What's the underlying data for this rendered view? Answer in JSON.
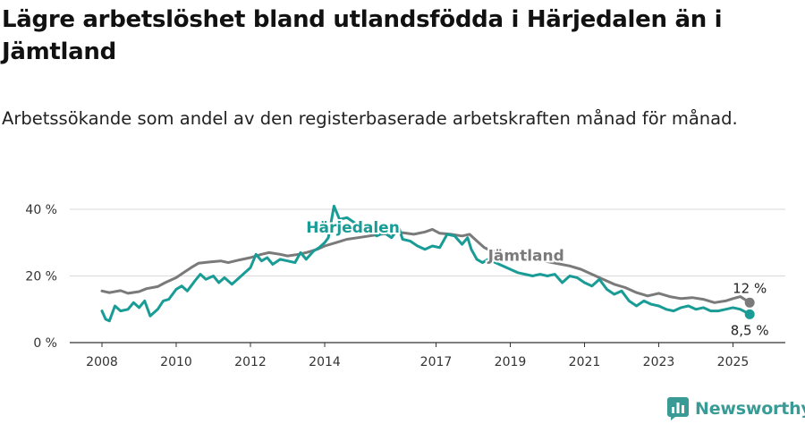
{
  "title": "Lägre arbetslöshet bland utlandsfödda i Härjedalen än i Jämtland",
  "subtitle": "Arbetssökande som andel av den registerbaserade arbetskraften månad för månad.",
  "logo": {
    "text": "Newsworthy",
    "icon": "newsworthy-logo-icon",
    "color": "#3a9b96"
  },
  "chart_data": {
    "type": "line",
    "ylim": [
      0,
      40
    ],
    "xlim": [
      2007.2,
      2026.0
    ],
    "grid": true,
    "y_ticks": [
      {
        "value": 0,
        "label": "0 %"
      },
      {
        "value": 20,
        "label": "20 %"
      },
      {
        "value": 40,
        "label": "40 %"
      }
    ],
    "x_ticks": [
      {
        "value": 2008,
        "label": "2008"
      },
      {
        "value": 2010,
        "label": "2010"
      },
      {
        "value": 2012,
        "label": "2012"
      },
      {
        "value": 2014,
        "label": "2014"
      },
      {
        "value": 2017,
        "label": "2017"
      },
      {
        "value": 2019,
        "label": "2019"
      },
      {
        "value": 2021,
        "label": "2021"
      },
      {
        "value": 2023,
        "label": "2023"
      },
      {
        "value": 2025,
        "label": "2025"
      }
    ],
    "series": [
      {
        "name": "Jämtland",
        "color": "#7a7a7a",
        "end_label": "12 %",
        "points": [
          [
            2008.0,
            15.5
          ],
          [
            2008.2,
            15.0
          ],
          [
            2008.5,
            15.6
          ],
          [
            2008.7,
            14.8
          ],
          [
            2009.0,
            15.3
          ],
          [
            2009.2,
            16.2
          ],
          [
            2009.5,
            16.8
          ],
          [
            2009.7,
            18.0
          ],
          [
            2010.0,
            19.5
          ],
          [
            2010.2,
            21.0
          ],
          [
            2010.4,
            22.5
          ],
          [
            2010.6,
            23.8
          ],
          [
            2010.9,
            24.2
          ],
          [
            2011.2,
            24.5
          ],
          [
            2011.4,
            24.0
          ],
          [
            2011.7,
            24.8
          ],
          [
            2012.0,
            25.5
          ],
          [
            2012.3,
            26.5
          ],
          [
            2012.5,
            27.0
          ],
          [
            2012.8,
            26.5
          ],
          [
            2013.0,
            26.0
          ],
          [
            2013.3,
            26.5
          ],
          [
            2013.5,
            27.0
          ],
          [
            2013.8,
            28.0
          ],
          [
            2014.0,
            29.0
          ],
          [
            2014.3,
            30.0
          ],
          [
            2014.6,
            31.0
          ],
          [
            2014.9,
            31.5
          ],
          [
            2015.2,
            32.0
          ],
          [
            2015.5,
            32.5
          ],
          [
            2015.8,
            32.8
          ],
          [
            2016.1,
            33.0
          ],
          [
            2016.4,
            32.5
          ],
          [
            2016.7,
            33.2
          ],
          [
            2016.9,
            34.0
          ],
          [
            2017.1,
            32.8
          ],
          [
            2017.4,
            32.5
          ],
          [
            2017.7,
            32.0
          ],
          [
            2017.9,
            32.5
          ],
          [
            2018.1,
            30.5
          ],
          [
            2018.3,
            28.5
          ],
          [
            2018.5,
            27.5
          ],
          [
            2020.6,
            23.0
          ],
          [
            2020.9,
            22.0
          ],
          [
            2021.2,
            20.5
          ],
          [
            2021.5,
            19.0
          ],
          [
            2021.8,
            17.5
          ],
          [
            2022.1,
            16.5
          ],
          [
            2022.4,
            15.0
          ],
          [
            2022.7,
            14.0
          ],
          [
            2023.0,
            14.8
          ],
          [
            2023.3,
            13.8
          ],
          [
            2023.6,
            13.2
          ],
          [
            2023.9,
            13.5
          ],
          [
            2024.2,
            13.0
          ],
          [
            2024.5,
            12.0
          ],
          [
            2024.8,
            12.5
          ],
          [
            2025.0,
            13.2
          ],
          [
            2025.2,
            13.8
          ],
          [
            2025.45,
            12.0
          ]
        ]
      },
      {
        "name": "Härjedalen",
        "color": "#199c95",
        "end_label": "8,5 %",
        "points": [
          [
            2008.0,
            9.5
          ],
          [
            2008.1,
            7.0
          ],
          [
            2008.2,
            6.5
          ],
          [
            2008.35,
            11.0
          ],
          [
            2008.5,
            9.5
          ],
          [
            2008.7,
            10.0
          ],
          [
            2008.85,
            12.0
          ],
          [
            2009.0,
            10.5
          ],
          [
            2009.15,
            12.5
          ],
          [
            2009.3,
            8.0
          ],
          [
            2009.5,
            10.0
          ],
          [
            2009.65,
            12.5
          ],
          [
            2009.8,
            13.0
          ],
          [
            2010.0,
            16.0
          ],
          [
            2010.15,
            17.0
          ],
          [
            2010.3,
            15.5
          ],
          [
            2010.5,
            18.5
          ],
          [
            2010.65,
            20.5
          ],
          [
            2010.8,
            19.0
          ],
          [
            2011.0,
            20.0
          ],
          [
            2011.15,
            18.0
          ],
          [
            2011.3,
            19.5
          ],
          [
            2011.5,
            17.5
          ],
          [
            2011.7,
            19.5
          ],
          [
            2011.85,
            21.0
          ],
          [
            2012.0,
            22.5
          ],
          [
            2012.15,
            26.5
          ],
          [
            2012.3,
            24.5
          ],
          [
            2012.45,
            25.5
          ],
          [
            2012.6,
            23.5
          ],
          [
            2012.8,
            25.0
          ],
          [
            2013.0,
            24.5
          ],
          [
            2013.2,
            24.0
          ],
          [
            2013.35,
            27.0
          ],
          [
            2013.5,
            25.0
          ],
          [
            2013.7,
            27.5
          ],
          [
            2013.85,
            28.5
          ],
          [
            2014.0,
            30.0
          ],
          [
            2014.1,
            31.5
          ],
          [
            2014.25,
            41.0
          ],
          [
            2014.4,
            37.0
          ],
          [
            2014.6,
            37.5
          ],
          [
            2014.8,
            36.0
          ],
          [
            2015.0,
            33.5
          ],
          [
            2015.2,
            34.5
          ],
          [
            2015.4,
            32.0
          ],
          [
            2015.6,
            33.0
          ],
          [
            2015.8,
            31.5
          ],
          [
            2016.0,
            34.5
          ],
          [
            2016.1,
            31.0
          ],
          [
            2016.3,
            30.5
          ],
          [
            2016.5,
            29.0
          ],
          [
            2016.7,
            28.0
          ],
          [
            2016.9,
            29.0
          ],
          [
            2017.1,
            28.5
          ],
          [
            2017.3,
            32.5
          ],
          [
            2017.5,
            32.0
          ],
          [
            2017.7,
            29.5
          ],
          [
            2017.85,
            31.5
          ],
          [
            2017.95,
            28.0
          ],
          [
            2018.1,
            25.0
          ],
          [
            2018.25,
            24.0
          ],
          [
            2018.4,
            25.0
          ],
          [
            2019.2,
            21.0
          ],
          [
            2019.4,
            20.5
          ],
          [
            2019.6,
            20.0
          ],
          [
            2019.8,
            20.5
          ],
          [
            2020.0,
            20.0
          ],
          [
            2020.2,
            20.5
          ],
          [
            2020.4,
            18.0
          ],
          [
            2020.6,
            20.0
          ],
          [
            2020.8,
            19.5
          ],
          [
            2021.0,
            18.0
          ],
          [
            2021.2,
            17.0
          ],
          [
            2021.4,
            19.0
          ],
          [
            2021.6,
            16.0
          ],
          [
            2021.8,
            14.5
          ],
          [
            2022.0,
            15.5
          ],
          [
            2022.2,
            12.5
          ],
          [
            2022.4,
            11.0
          ],
          [
            2022.6,
            12.5
          ],
          [
            2022.8,
            11.5
          ],
          [
            2023.0,
            11.0
          ],
          [
            2023.2,
            10.0
          ],
          [
            2023.4,
            9.5
          ],
          [
            2023.6,
            10.5
          ],
          [
            2023.8,
            11.0
          ],
          [
            2024.0,
            10.0
          ],
          [
            2024.2,
            10.5
          ],
          [
            2024.4,
            9.5
          ],
          [
            2024.6,
            9.5
          ],
          [
            2024.8,
            10.0
          ],
          [
            2025.0,
            10.5
          ],
          [
            2025.2,
            10.0
          ],
          [
            2025.45,
            8.5
          ]
        ]
      }
    ],
    "annotations": [
      {
        "series": "Härjedalen",
        "text": "Härjedalen",
        "x": 2013.5,
        "y": 33.0
      },
      {
        "series": "Jämtland",
        "text": "Jämtland",
        "x": 2018.4,
        "y": 24.5
      }
    ]
  }
}
